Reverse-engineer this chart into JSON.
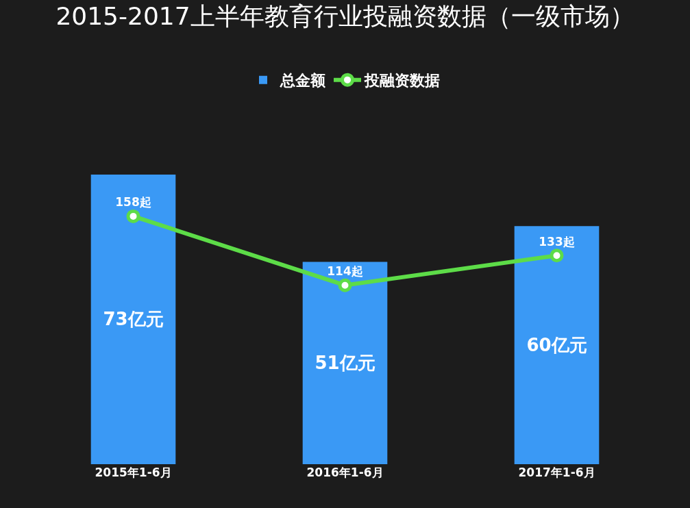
{
  "chart_data": {
    "type": "bar",
    "title": "2015-2017上半年教育行业投融资数据（一级市场）",
    "categories": [
      "2015年1-6月",
      "2016年1-6月",
      "2017年1-6月"
    ],
    "series": [
      {
        "name": "总金额",
        "color": "#3a99f5",
        "values": [
          73,
          51,
          60
        ],
        "value_labels": [
          "73亿元",
          "51亿元",
          "60亿元"
        ]
      },
      {
        "name": "投融资数据",
        "type": "line",
        "axis": "y2",
        "color": "#5ddc48",
        "values": [
          158,
          114,
          133
        ],
        "value_labels": [
          "158起",
          "114起",
          "133起"
        ]
      }
    ],
    "legend": "top",
    "marker": "circle",
    "line_style": "solid",
    "grid": false,
    "tick_labels": "x"
  }
}
